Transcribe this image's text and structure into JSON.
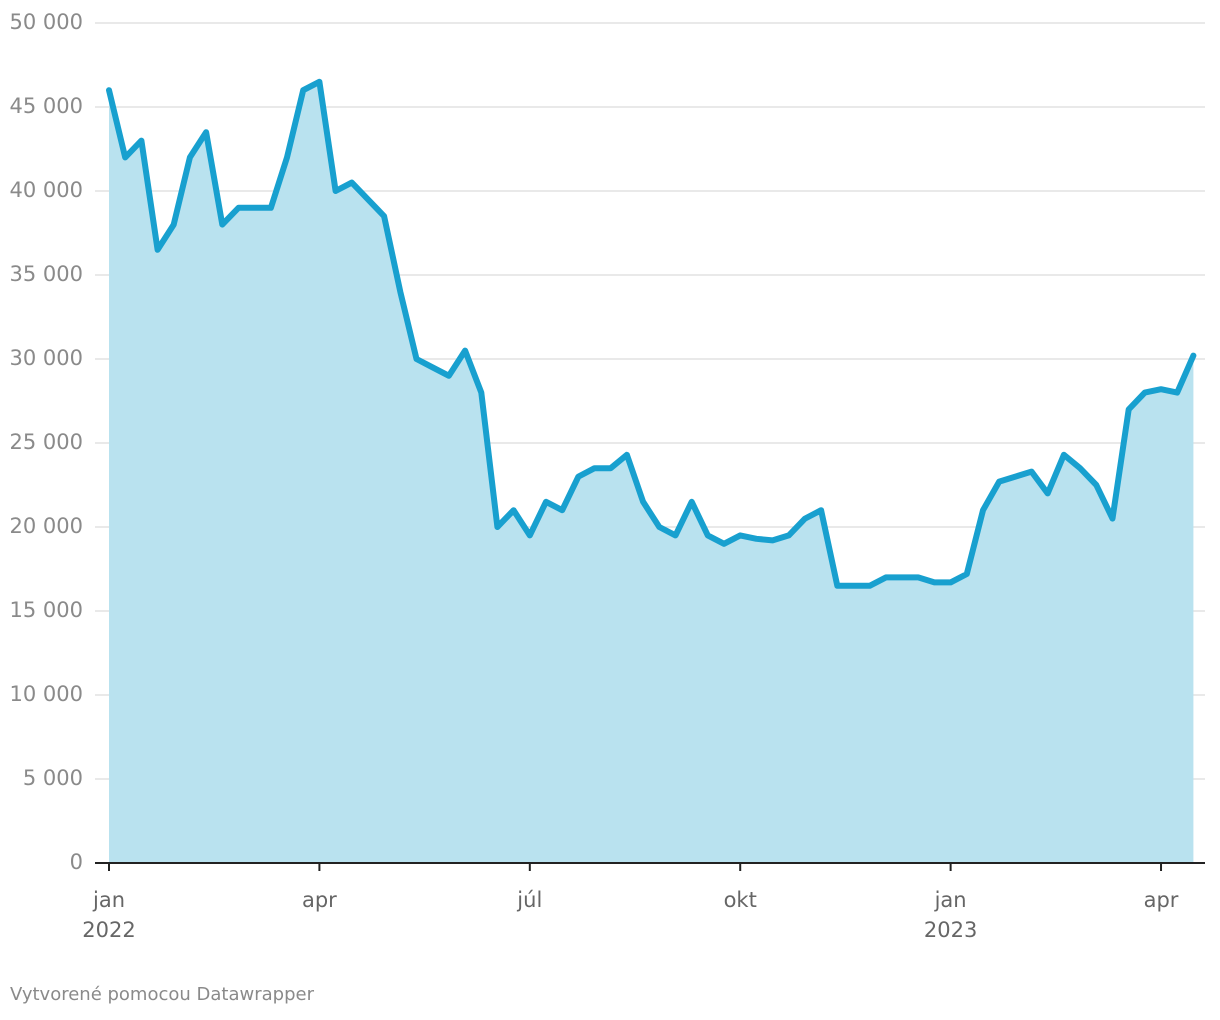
{
  "chart_data": {
    "type": "area",
    "categories": [
      "jan 2022",
      null,
      null,
      null,
      null,
      null,
      null,
      null,
      null,
      null,
      null,
      null,
      null,
      "apr",
      null,
      null,
      null,
      null,
      null,
      null,
      null,
      null,
      null,
      null,
      null,
      null,
      "júl",
      null,
      null,
      null,
      null,
      null,
      null,
      null,
      null,
      null,
      null,
      null,
      null,
      "okt",
      null,
      null,
      null,
      null,
      null,
      null,
      null,
      null,
      null,
      null,
      null,
      null,
      "jan 2023",
      null,
      null,
      null,
      null,
      null,
      null,
      null,
      null,
      null,
      null,
      null,
      null,
      "apr",
      null,
      null
    ],
    "values": [
      46000,
      42000,
      43000,
      36500,
      38000,
      42000,
      43500,
      38000,
      39000,
      39000,
      39000,
      42000,
      46000,
      46500,
      40000,
      40500,
      39500,
      38500,
      34000,
      30000,
      29500,
      29000,
      30500,
      28000,
      20000,
      21000,
      19500,
      21500,
      21000,
      23000,
      23500,
      23500,
      24300,
      21500,
      20000,
      19500,
      21500,
      19500,
      19000,
      19500,
      19300,
      19200,
      19500,
      20500,
      21000,
      16500,
      16500,
      16500,
      17000,
      17000,
      17000,
      16700,
      16700,
      17200,
      21000,
      22700,
      23000,
      23300,
      22000,
      24300,
      23500,
      22500,
      20500,
      27000,
      28000,
      28200,
      28000,
      30200
    ],
    "color": "#18a0cf",
    "fill_color": "#b9e2ef",
    "ylim": [
      0,
      50000
    ],
    "yticks": [
      0,
      {
        "value": 5000,
        "label": "5 000"
      },
      {
        "value": 10000,
        "label": "10 000"
      },
      {
        "value": 15000,
        "label": "15 000"
      },
      {
        "value": 20000,
        "label": "20 000"
      },
      {
        "value": 25000,
        "label": "25 000"
      },
      {
        "value": 30000,
        "label": "30 000"
      },
      {
        "value": 35000,
        "label": "35 000"
      },
      {
        "value": 40000,
        "label": "40 000"
      },
      {
        "value": 45000,
        "label": "45 000"
      },
      {
        "value": 50000,
        "label": "50 000"
      }
    ],
    "grid": true,
    "footer": "Vytvorené pomocou Datawrapper"
  }
}
